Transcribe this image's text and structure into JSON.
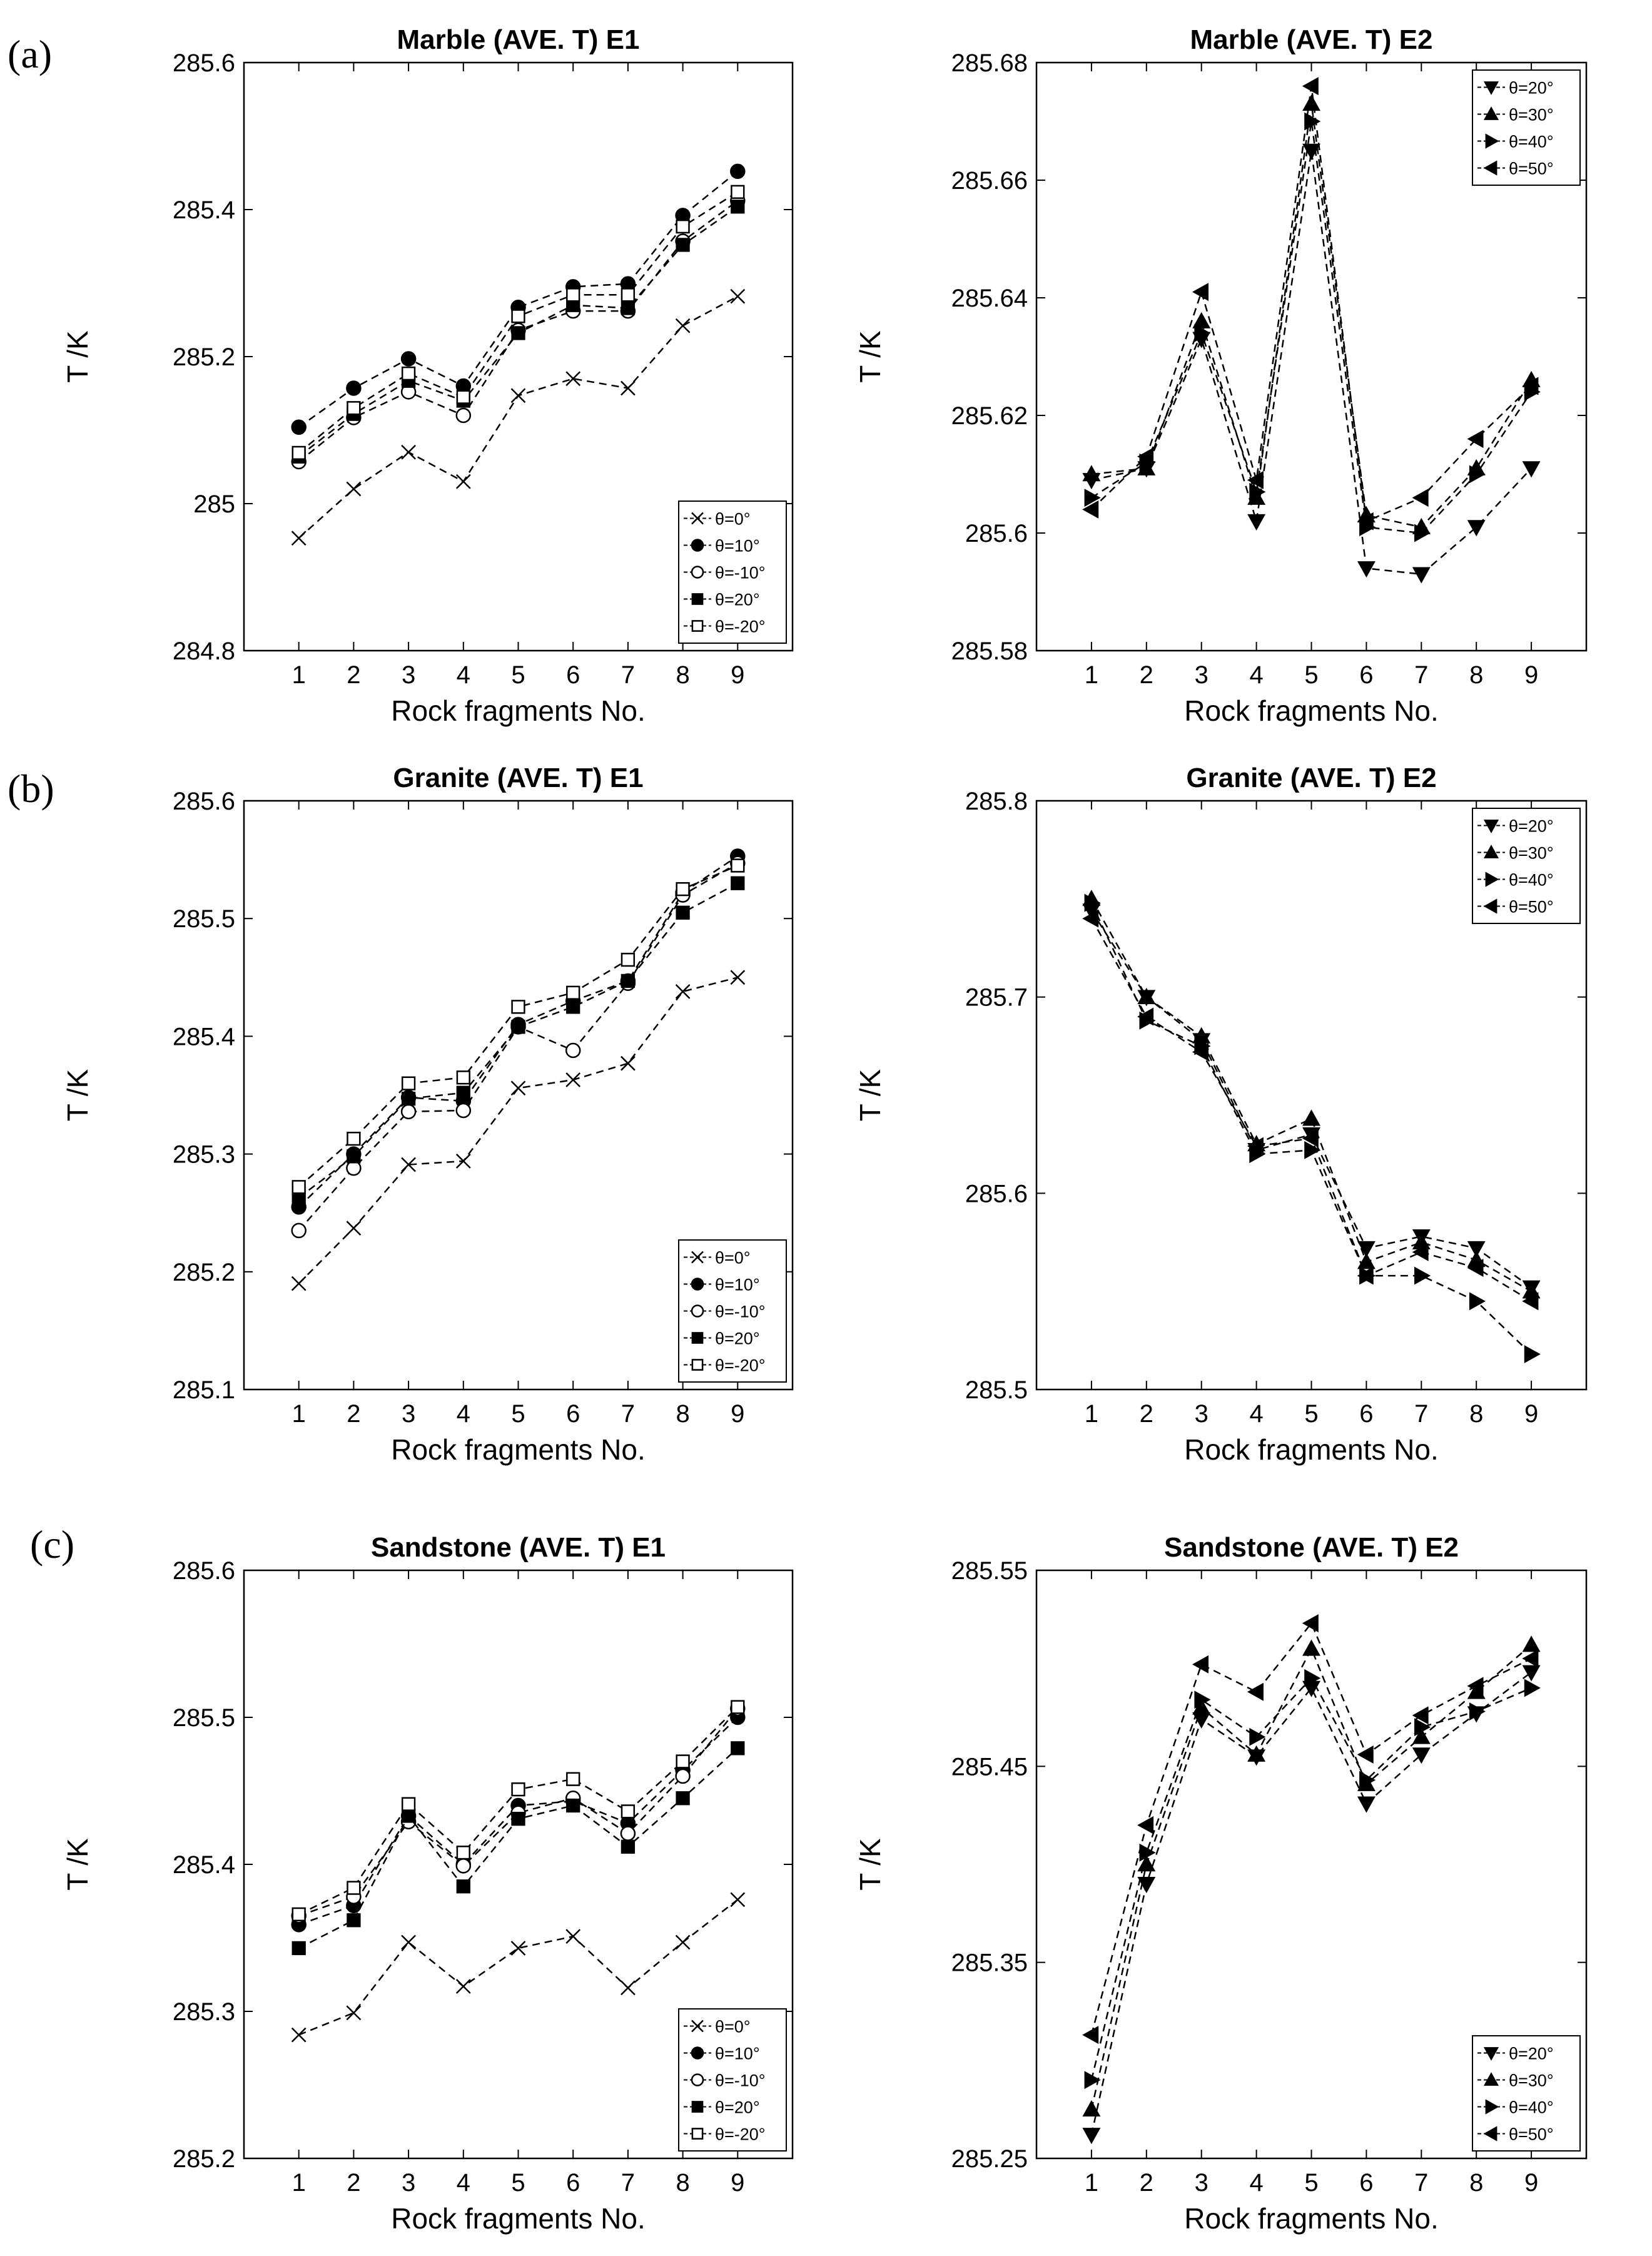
{
  "panel_labels": [
    "(a)",
    "(b)",
    "(c)"
  ],
  "chart_data": [
    {
      "type": "line",
      "title": "Marble (AVE. T) E1",
      "xlabel": "Rock fragments No.",
      "ylabel": "T /K",
      "x": [
        1,
        2,
        3,
        4,
        5,
        6,
        7,
        8,
        9
      ],
      "xlim": [
        0,
        10
      ],
      "ylim": [
        284.8,
        285.6
      ],
      "yticks": [
        "284.8",
        "285",
        "285.2",
        "285.4",
        "285.6"
      ],
      "legend_position": "bottom-right",
      "grid": false,
      "series": [
        {
          "name": "θ=0°",
          "marker": "x",
          "values": [
            284.953,
            285.02,
            285.07,
            285.03,
            285.147,
            285.17,
            285.157,
            285.242,
            285.282
          ]
        },
        {
          "name": "θ=10°",
          "marker": "circle-filled",
          "values": [
            285.104,
            285.157,
            285.197,
            285.16,
            285.267,
            285.295,
            285.299,
            285.392,
            285.452
          ]
        },
        {
          "name": "θ=-10°",
          "marker": "circle-open",
          "values": [
            285.057,
            285.117,
            285.152,
            285.12,
            285.236,
            285.262,
            285.262,
            285.357,
            285.412
          ]
        },
        {
          "name": "θ=20°",
          "marker": "square-filled",
          "values": [
            285.064,
            285.122,
            285.167,
            285.14,
            285.232,
            285.27,
            285.266,
            285.352,
            285.404
          ]
        },
        {
          "name": "θ=-20°",
          "marker": "square-open",
          "values": [
            285.069,
            285.13,
            285.177,
            285.145,
            285.255,
            285.284,
            285.284,
            285.377,
            285.424
          ]
        }
      ]
    },
    {
      "type": "line",
      "title": "Marble (AVE. T) E2",
      "xlabel": "Rock fragments No.",
      "ylabel": "T /K",
      "x": [
        1,
        2,
        3,
        4,
        5,
        6,
        7,
        8,
        9
      ],
      "xlim": [
        0,
        10
      ],
      "ylim": [
        285.58,
        285.68
      ],
      "yticks": [
        "285.58",
        "285.6",
        "285.62",
        "285.64",
        "285.66",
        "285.68"
      ],
      "legend_position": "top-right",
      "grid": false,
      "series": [
        {
          "name": "θ=20°",
          "marker": "triangle-down",
          "values": [
            285.609,
            285.611,
            285.633,
            285.602,
            285.665,
            285.594,
            285.593,
            285.601,
            285.611
          ]
        },
        {
          "name": "θ=30°",
          "marker": "triangle-up",
          "values": [
            285.61,
            285.611,
            285.636,
            285.606,
            285.673,
            285.603,
            285.601,
            285.611,
            285.626
          ]
        },
        {
          "name": "θ=40°",
          "marker": "triangle-right",
          "values": [
            285.606,
            285.612,
            285.634,
            285.607,
            285.67,
            285.601,
            285.6,
            285.61,
            285.624
          ]
        },
        {
          "name": "θ=50°",
          "marker": "triangle-left",
          "values": [
            285.604,
            285.613,
            285.641,
            285.609,
            285.676,
            285.602,
            285.606,
            285.616,
            285.625
          ]
        }
      ]
    },
    {
      "type": "line",
      "title": "Granite (AVE. T) E1",
      "xlabel": "Rock fragments No.",
      "ylabel": "T /K",
      "x": [
        1,
        2,
        3,
        4,
        5,
        6,
        7,
        8,
        9
      ],
      "xlim": [
        0,
        10
      ],
      "ylim": [
        285.1,
        285.6
      ],
      "yticks": [
        "285.1",
        "285.2",
        "285.3",
        "285.4",
        "285.5",
        "285.6"
      ],
      "legend_position": "bottom-right",
      "grid": false,
      "series": [
        {
          "name": "θ=0°",
          "marker": "x",
          "values": [
            285.19,
            285.237,
            285.291,
            285.294,
            285.356,
            285.363,
            285.377,
            285.438,
            285.45
          ]
        },
        {
          "name": "θ=10°",
          "marker": "circle-filled",
          "values": [
            285.255,
            285.3,
            285.348,
            285.345,
            285.41,
            285.43,
            285.447,
            285.522,
            285.553
          ]
        },
        {
          "name": "θ=-10°",
          "marker": "circle-open",
          "values": [
            285.235,
            285.288,
            285.336,
            285.337,
            285.408,
            285.388,
            285.445,
            285.52,
            285.547
          ]
        },
        {
          "name": "θ=20°",
          "marker": "square-filled",
          "values": [
            285.263,
            285.298,
            285.347,
            285.352,
            285.408,
            285.425,
            285.447,
            285.505,
            285.53
          ]
        },
        {
          "name": "θ=-20°",
          "marker": "square-open",
          "values": [
            285.272,
            285.313,
            285.36,
            285.365,
            285.425,
            285.437,
            285.465,
            285.525,
            285.545
          ]
        }
      ]
    },
    {
      "type": "line",
      "title": "Granite (AVE. T) E2",
      "xlabel": "Rock fragments No.",
      "ylabel": "T /K",
      "x": [
        1,
        2,
        3,
        4,
        5,
        6,
        7,
        8,
        9
      ],
      "xlim": [
        0,
        10
      ],
      "ylim": [
        285.5,
        285.8
      ],
      "yticks": [
        "285.5",
        "285.6",
        "285.7",
        "285.8"
      ],
      "legend_position": "top-right",
      "grid": false,
      "series": [
        {
          "name": "θ=20°",
          "marker": "triangle-down",
          "values": [
            285.744,
            285.7,
            285.678,
            285.622,
            285.63,
            285.572,
            285.578,
            285.572,
            285.552
          ]
        },
        {
          "name": "θ=30°",
          "marker": "triangle-up",
          "values": [
            285.75,
            285.7,
            285.68,
            285.625,
            285.638,
            285.565,
            285.575,
            285.566,
            285.55
          ]
        },
        {
          "name": "θ=40°",
          "marker": "triangle-right",
          "values": [
            285.748,
            285.688,
            285.675,
            285.62,
            285.622,
            285.558,
            285.558,
            285.545,
            285.518
          ]
        },
        {
          "name": "θ=50°",
          "marker": "triangle-left",
          "values": [
            285.74,
            285.69,
            285.672,
            285.624,
            285.628,
            285.558,
            285.57,
            285.562,
            285.545
          ]
        }
      ]
    },
    {
      "type": "line",
      "title": "Sandstone (AVE. T) E1",
      "xlabel": "Rock fragments No.",
      "ylabel": "T /K",
      "x": [
        1,
        2,
        3,
        4,
        5,
        6,
        7,
        8,
        9
      ],
      "xlim": [
        0,
        10
      ],
      "ylim": [
        285.2,
        285.6
      ],
      "yticks": [
        "285.2",
        "285.3",
        "285.4",
        "285.5",
        "285.6"
      ],
      "legend_position": "bottom-right",
      "grid": false,
      "series": [
        {
          "name": "θ=0°",
          "marker": "x",
          "values": [
            285.284,
            285.299,
            285.347,
            285.317,
            285.343,
            285.351,
            285.316,
            285.347,
            285.376
          ]
        },
        {
          "name": "θ=10°",
          "marker": "circle-filled",
          "values": [
            285.359,
            285.372,
            285.433,
            285.4,
            285.44,
            285.443,
            285.428,
            285.464,
            285.5
          ]
        },
        {
          "name": "θ=-10°",
          "marker": "circle-open",
          "values": [
            285.365,
            285.378,
            285.429,
            285.399,
            285.435,
            285.445,
            285.421,
            285.46,
            285.506
          ]
        },
        {
          "name": "θ=20°",
          "marker": "square-filled",
          "values": [
            285.343,
            285.362,
            285.433,
            285.385,
            285.431,
            285.44,
            285.412,
            285.445,
            285.479
          ]
        },
        {
          "name": "θ=-20°",
          "marker": "square-open",
          "values": [
            285.366,
            285.384,
            285.441,
            285.408,
            285.451,
            285.458,
            285.436,
            285.47,
            285.507
          ]
        }
      ]
    },
    {
      "type": "line",
      "title": "Sandstone (AVE. T) E2",
      "xlabel": "Rock fragments No.",
      "ylabel": "T /K",
      "x": [
        1,
        2,
        3,
        4,
        5,
        6,
        7,
        8,
        9
      ],
      "xlim": [
        0,
        10
      ],
      "ylim": [
        285.25,
        285.55
      ],
      "yticks": [
        "285.25",
        "285.35",
        "285.45",
        "285.55"
      ],
      "legend_position": "bottom-right",
      "grid": false,
      "series": [
        {
          "name": "θ=20°",
          "marker": "triangle-down",
          "values": [
            285.262,
            285.39,
            285.474,
            285.455,
            285.49,
            285.431,
            285.456,
            285.477,
            285.498
          ]
        },
        {
          "name": "θ=30°",
          "marker": "triangle-up",
          "values": [
            285.275,
            285.4,
            285.48,
            285.456,
            285.51,
            285.441,
            285.465,
            285.488,
            285.512
          ]
        },
        {
          "name": "θ=40°",
          "marker": "triangle-right",
          "values": [
            285.29,
            285.406,
            285.484,
            285.465,
            285.495,
            285.443,
            285.47,
            285.478,
            285.49
          ]
        },
        {
          "name": "θ=50°",
          "marker": "triangle-left",
          "values": [
            285.313,
            285.42,
            285.502,
            285.488,
            285.523,
            285.456,
            285.476,
            285.491,
            285.505
          ]
        }
      ]
    }
  ]
}
